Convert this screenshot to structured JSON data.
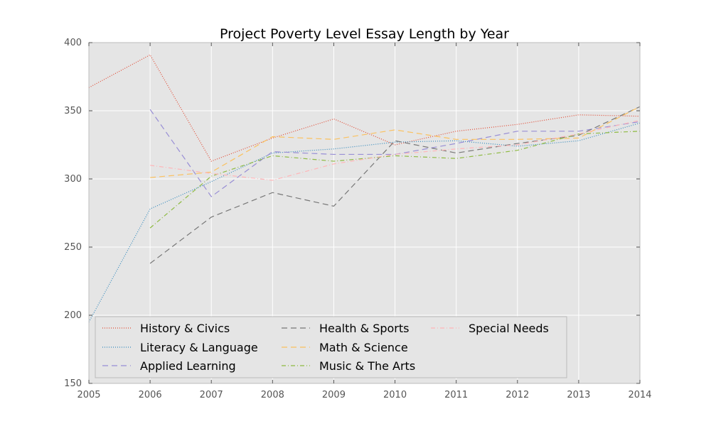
{
  "chart_data": {
    "type": "line",
    "title": "Project Poverty Level Essay Length by Year",
    "xlabel": "",
    "ylabel": "",
    "x": [
      2005,
      2006,
      2007,
      2008,
      2009,
      2010,
      2011,
      2012,
      2013,
      2014
    ],
    "xlim": [
      2005,
      2014
    ],
    "ylim": [
      150,
      400
    ],
    "xticks": [
      "2005",
      "2006",
      "2007",
      "2008",
      "2009",
      "2010",
      "2011",
      "2012",
      "2013",
      "2014"
    ],
    "yticks": [
      "150",
      "200",
      "250",
      "300",
      "350",
      "400"
    ],
    "grid": true,
    "legend_position": "lower-left",
    "series": [
      {
        "name": "History & Civics",
        "color": "#E24A33",
        "dash": "dotted",
        "values": [
          367,
          391,
          313,
          330,
          344,
          325,
          335,
          340,
          347,
          346
        ]
      },
      {
        "name": "Literacy & Language",
        "color": "#348ABD",
        "dash": "dotted",
        "values": [
          195,
          278,
          298,
          319,
          322,
          327,
          328,
          324,
          328,
          341
        ]
      },
      {
        "name": "Applied Learning",
        "color": "#988ED5",
        "dash": "dashed",
        "values": [
          null,
          351,
          287,
          320,
          318,
          318,
          326,
          335,
          335,
          342
        ]
      },
      {
        "name": "Health & Sports",
        "color": "#777777",
        "dash": "dashed",
        "values": [
          null,
          238,
          272,
          290,
          280,
          328,
          319,
          326,
          332,
          353
        ]
      },
      {
        "name": "Math & Science",
        "color": "#FBC15E",
        "dash": "dashed",
        "values": [
          null,
          301,
          305,
          331,
          329,
          336,
          329,
          329,
          330,
          353
        ]
      },
      {
        "name": "Music & The Arts",
        "color": "#8EBA42",
        "dash": "dashdot",
        "values": [
          null,
          264,
          302,
          317,
          313,
          317,
          315,
          321,
          333,
          335
        ]
      },
      {
        "name": "Special Needs",
        "color": "#FFB5B8",
        "dash": "dashdot",
        "values": [
          null,
          310,
          304,
          299,
          311,
          318,
          322,
          325,
          333,
          343
        ]
      }
    ]
  }
}
